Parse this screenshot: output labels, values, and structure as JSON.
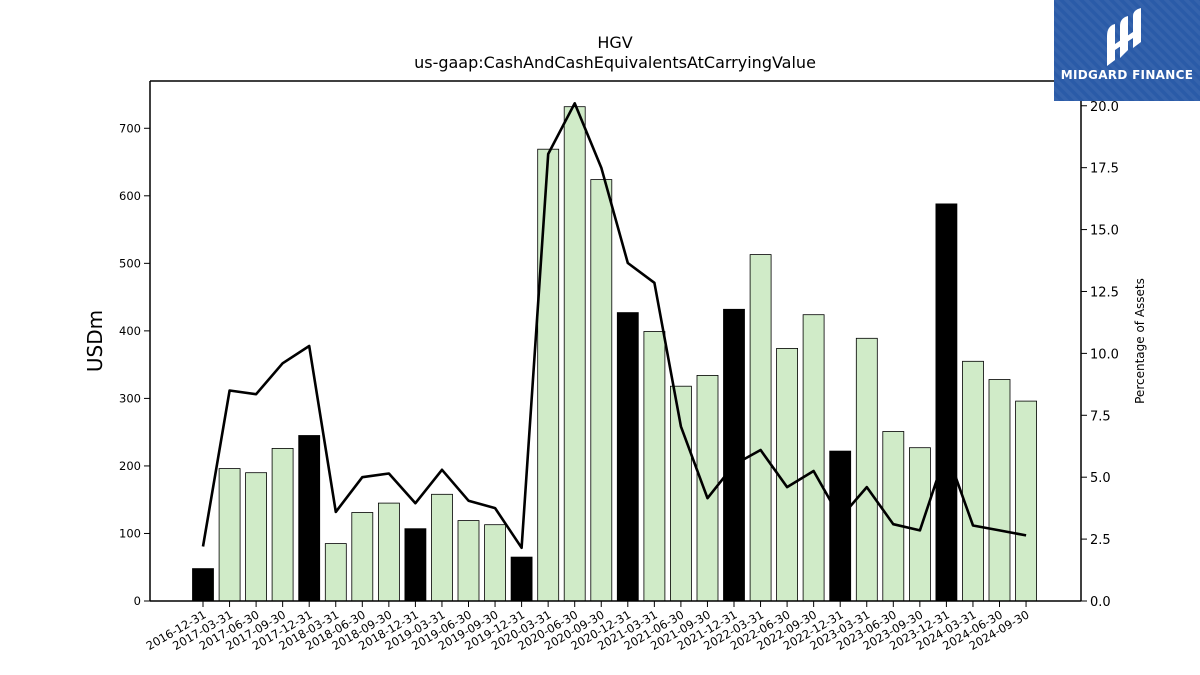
{
  "brand": {
    "name": "MIDGARD FINANCE",
    "bg_color": "#2a5ba8"
  },
  "chart_data": {
    "type": "bar",
    "title": "HGV",
    "subtitle": "us-gaap:CashAndCashEquivalentsAtCarryingValue",
    "ylabel": "USDm",
    "ylabel_right": "Percentage of Assets",
    "ylim": [
      0,
      770
    ],
    "ylim_right": [
      0,
      21
    ],
    "yticks": [
      0,
      100,
      200,
      300,
      400,
      500,
      600,
      700
    ],
    "yticks_right": [
      "0.0",
      "2.5",
      "5.0",
      "7.5",
      "10.0",
      "12.5",
      "15.0",
      "17.5",
      "20.0"
    ],
    "colors": {
      "annual": "#000000",
      "quarter": "#d0ebc8",
      "line": "#000000"
    },
    "categories": [
      "2016-12-31",
      "2017-03-31",
      "2017-06-30",
      "2017-09-30",
      "2017-12-31",
      "2018-03-31",
      "2018-06-30",
      "2018-09-30",
      "2018-12-31",
      "2019-03-31",
      "2019-06-30",
      "2019-09-30",
      "2019-12-31",
      "2020-03-31",
      "2020-06-30",
      "2020-09-30",
      "2020-12-31",
      "2021-03-31",
      "2021-06-30",
      "2021-09-30",
      "2021-12-31",
      "2022-03-31",
      "2022-06-30",
      "2022-09-30",
      "2022-12-31",
      "2023-03-31",
      "2023-06-30",
      "2023-09-30",
      "2023-12-31",
      "2024-03-31",
      "2024-06-30",
      "2024-09-30"
    ],
    "series": [
      {
        "type": "bar",
        "values": [
          48,
          196,
          190,
          226,
          245,
          85,
          131,
          145,
          107,
          158,
          119,
          113,
          65,
          669,
          732,
          624,
          427,
          399,
          318,
          334,
          432,
          513,
          374,
          424,
          222,
          389,
          251,
          227,
          588,
          355,
          328,
          296
        ],
        "annual_flags": [
          true,
          false,
          false,
          false,
          true,
          false,
          false,
          false,
          true,
          false,
          false,
          false,
          true,
          false,
          false,
          false,
          true,
          false,
          false,
          false,
          true,
          false,
          false,
          false,
          true,
          false,
          false,
          false,
          true,
          false,
          false,
          false
        ]
      },
      {
        "type": "line",
        "axis": "right",
        "values": [
          2.2,
          8.5,
          8.35,
          9.6,
          10.3,
          3.6,
          5.0,
          5.15,
          3.95,
          5.3,
          4.05,
          3.75,
          2.15,
          18.05,
          20.1,
          17.5,
          13.65,
          12.85,
          7.05,
          4.15,
          5.5,
          6.1,
          4.6,
          5.25,
          3.35,
          4.6,
          3.1,
          2.85,
          6.05,
          3.05,
          2.85,
          2.65
        ]
      }
    ]
  }
}
